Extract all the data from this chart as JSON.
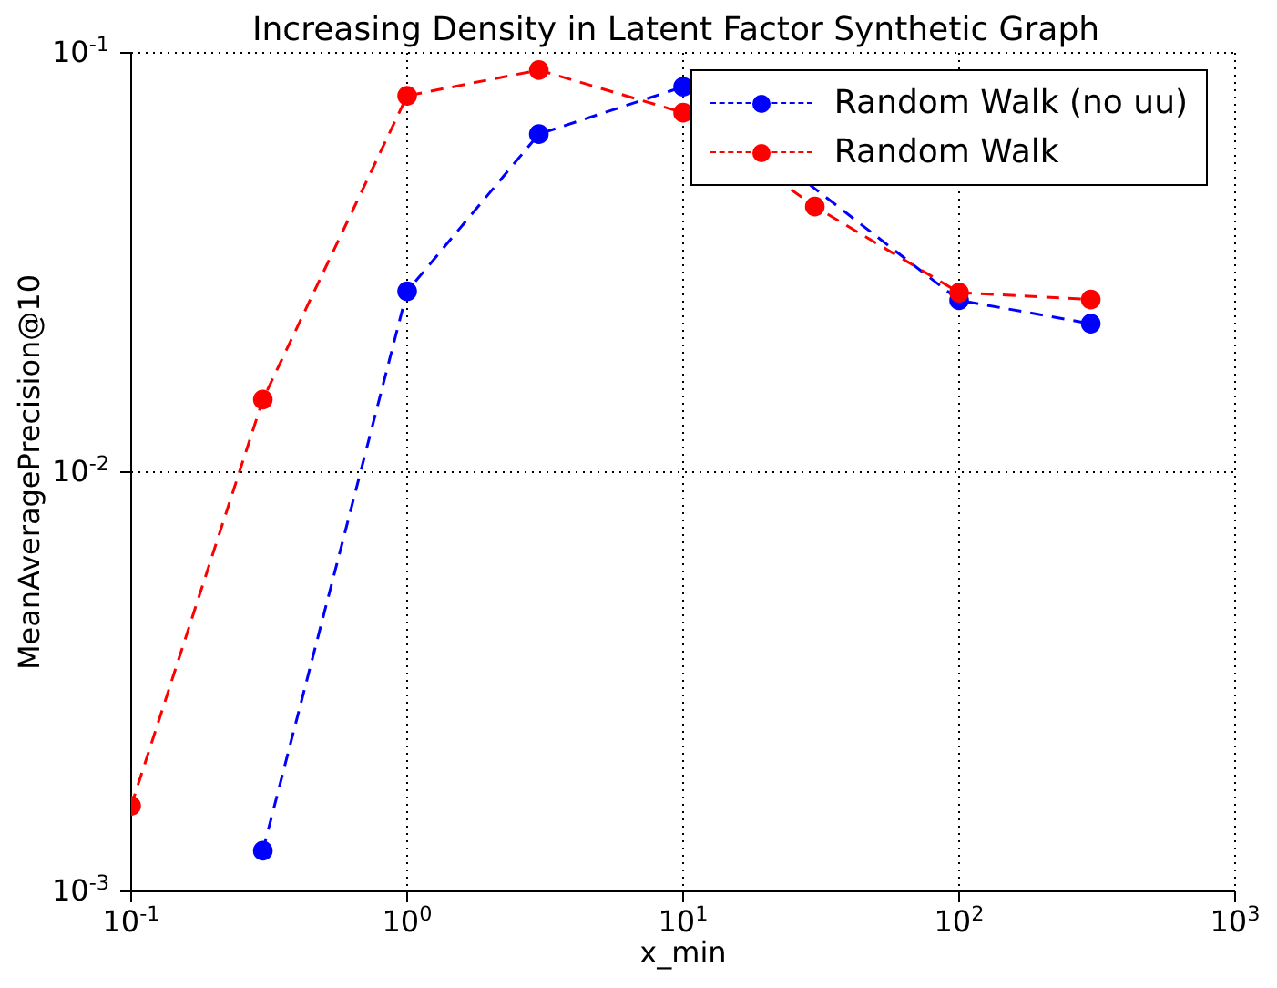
{
  "chart_data": {
    "type": "line",
    "title": "Increasing Density in Latent Factor Synthetic Graph",
    "xlabel": "x_min",
    "ylabel": "MeanAveragePrecision@10",
    "x": [
      0.1,
      0.3,
      1,
      3,
      10,
      30,
      100,
      300
    ],
    "series": [
      {
        "name": "Random Walk (no uu)",
        "color": "#0000ff",
        "values": [
          null,
          0.00125,
          0.027,
          0.064,
          0.083,
          null,
          0.0257,
          0.0226
        ]
      },
      {
        "name": "Random Walk",
        "color": "#ff0000",
        "values": [
          0.0016,
          0.0149,
          0.079,
          0.091,
          0.072,
          0.043,
          0.0268,
          0.0258
        ]
      }
    ],
    "xlim": [
      0.1,
      1000
    ],
    "ylim": [
      0.001,
      0.1
    ],
    "xticks": [
      {
        "value": 0.1,
        "label": "10$^{-1}$"
      },
      {
        "value": 1,
        "label": "10$^{0}$"
      },
      {
        "value": 10,
        "label": "10$^{1}$"
      },
      {
        "value": 100,
        "label": "10$^{2}$"
      },
      {
        "value": 1000,
        "label": "10$^{3}$"
      }
    ],
    "yticks": [
      {
        "value": 0.001,
        "label": "10$^{-3}$"
      },
      {
        "value": 0.01,
        "label": "10$^{-2}$"
      },
      {
        "value": 0.1,
        "label": "10$^{-1}$"
      }
    ],
    "log": "xy",
    "grid": true,
    "legend": "top right",
    "marker": "circle",
    "line_style": "dashed"
  }
}
